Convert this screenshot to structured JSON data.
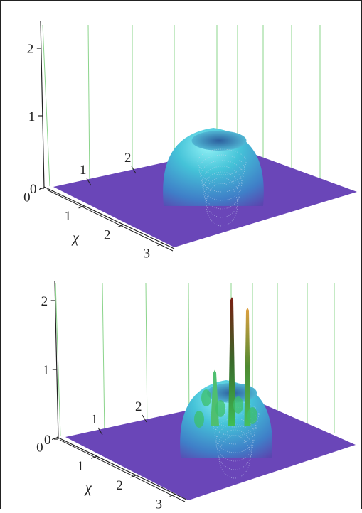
{
  "chart_data": [
    {
      "type": "surface",
      "panel": "top",
      "z_axis": {
        "ticks": [
          "0",
          "1",
          "2"
        ],
        "range": [
          0,
          2.3
        ]
      },
      "x_axis": {
        "label": "χ",
        "ticks": [
          "0",
          "1",
          "2",
          "3"
        ]
      },
      "y_axis": {
        "ticks": [
          "1",
          "2"
        ]
      },
      "surface": {
        "description_free_shape": "flat base with single ring-shaped crater bump",
        "base_color": "#6a46b8",
        "peak_color": "#5fd9e6",
        "bump": {
          "x": 2.2,
          "y": 2.3,
          "height": 0.95,
          "rim": true
        }
      },
      "grid": true
    },
    {
      "type": "surface",
      "panel": "bottom",
      "z_axis": {
        "ticks": [
          "0",
          "1",
          "2"
        ],
        "range": [
          0,
          2.3
        ]
      },
      "x_axis": {
        "label": "χ",
        "ticks": [
          "0",
          "1",
          "2",
          "3"
        ]
      },
      "y_axis": {
        "ticks": [
          "1",
          "2"
        ]
      },
      "surface": {
        "base_color": "#6a46b8",
        "peak_color": "#5fd9e6",
        "spike_colors": [
          "#3fbf55",
          "#b03a1e",
          "#e0a040"
        ],
        "bump": {
          "x": 2.2,
          "y": 2.3,
          "height": 0.8,
          "rim": true
        },
        "spikes": [
          {
            "height": 2.05
          },
          {
            "height": 1.9
          },
          {
            "height": 1.0
          }
        ]
      },
      "grid": true
    }
  ]
}
